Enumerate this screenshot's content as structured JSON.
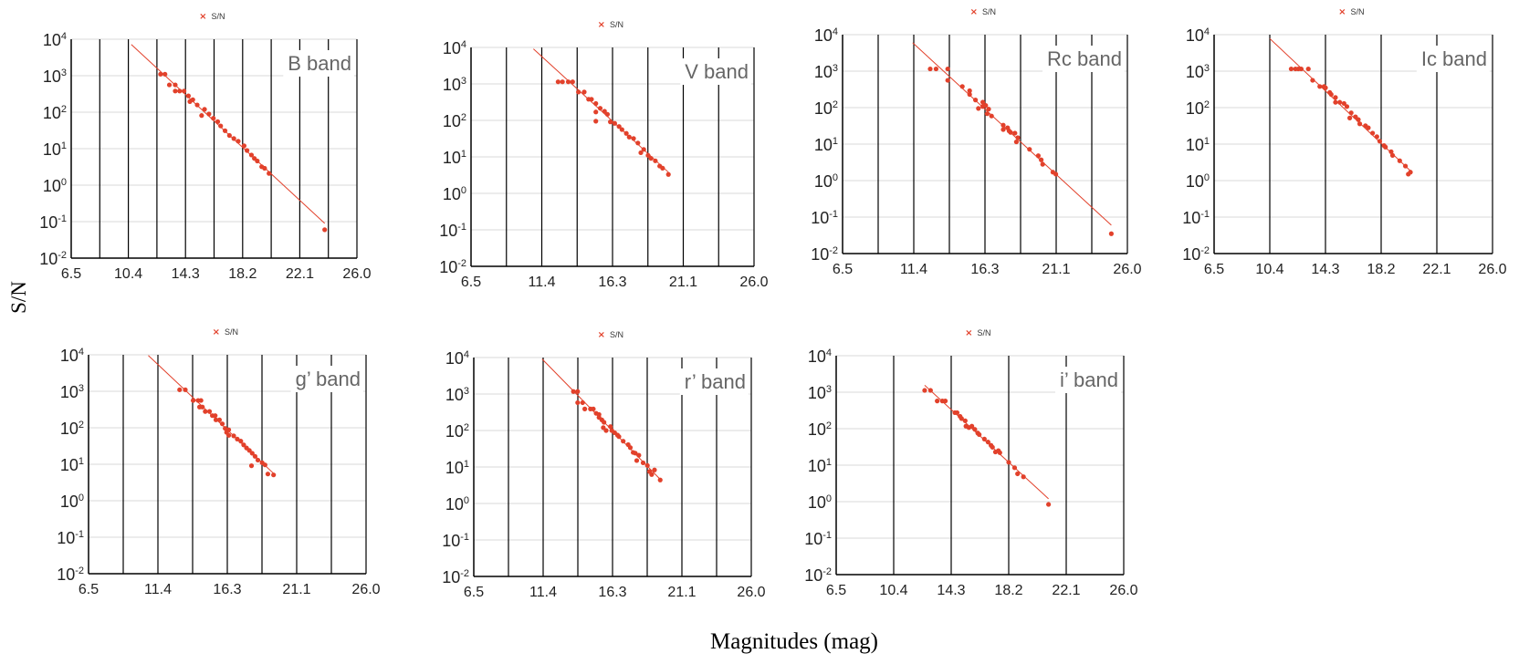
{
  "figure": {
    "ylabel": "S/N",
    "xlabel": "Magnitudes (mag)"
  },
  "colors": {
    "series": "#e2412b",
    "axis": "#000000",
    "grid": "#d9d9d9",
    "band_title": "#666666"
  },
  "chart_data": [
    {
      "type": "scatter",
      "title": "B band",
      "legend": "S/N",
      "legend_position": "top-center",
      "xlabel": "Magnitudes (mag)",
      "ylabel": "S/N",
      "xlim": [
        6.5,
        26.0
      ],
      "ylim": [
        0.01,
        10000
      ],
      "yscale": "log",
      "x_ticks": [
        "6.5",
        "10.4",
        "14.3",
        "18.2",
        "22.1",
        "26.0"
      ],
      "x_grid_step": 1.95,
      "y_tick_base": "10",
      "y_tick_exponents": [
        "4",
        "3",
        "2",
        "1",
        "0",
        "-1",
        "-2"
      ],
      "fit_line": [
        [
          10.6,
          7200
        ],
        [
          23.8,
          0.09
        ]
      ],
      "points": [
        [
          12.6,
          1100
        ],
        [
          12.9,
          1100
        ],
        [
          13.2,
          560
        ],
        [
          13.6,
          560
        ],
        [
          13.6,
          380
        ],
        [
          13.9,
          380
        ],
        [
          14.2,
          380
        ],
        [
          14.5,
          280
        ],
        [
          14.6,
          195
        ],
        [
          14.8,
          220
        ],
        [
          15.1,
          158
        ],
        [
          15.4,
          81
        ],
        [
          15.6,
          120
        ],
        [
          15.9,
          89
        ],
        [
          16.2,
          68
        ],
        [
          16.5,
          55
        ],
        [
          16.7,
          42
        ],
        [
          17.0,
          31
        ],
        [
          17.3,
          23
        ],
        [
          17.6,
          19
        ],
        [
          17.9,
          16
        ],
        [
          18.3,
          12
        ],
        [
          18.5,
          8.9
        ],
        [
          18.8,
          6.7
        ],
        [
          19.0,
          5.4
        ],
        [
          19.2,
          4.6
        ],
        [
          19.5,
          3.2
        ],
        [
          19.7,
          2.9
        ],
        [
          20.0,
          2.1
        ],
        [
          23.8,
          0.06
        ]
      ]
    },
    {
      "type": "scatter",
      "title": "V band",
      "legend": "S/N",
      "legend_position": "top-center",
      "xlabel": "Magnitudes (mag)",
      "ylabel": "S/N",
      "xlim": [
        6.5,
        26.0
      ],
      "ylim": [
        0.01,
        10000
      ],
      "yscale": "log",
      "x_ticks": [
        "6.5",
        "11.4",
        "16.3",
        "21.1",
        "26.0"
      ],
      "x_grid_step": 2.4375,
      "y_tick_base": "10",
      "y_tick_exponents": [
        "4",
        "3",
        "2",
        "1",
        "0",
        "-1",
        "-2"
      ],
      "fit_line": [
        [
          10.8,
          9100
        ],
        [
          20.1,
          3.8
        ]
      ],
      "points": [
        [
          12.5,
          1140
        ],
        [
          12.8,
          1140
        ],
        [
          13.2,
          1140
        ],
        [
          13.5,
          1140
        ],
        [
          13.9,
          600
        ],
        [
          14.3,
          600
        ],
        [
          14.6,
          380
        ],
        [
          14.8,
          380
        ],
        [
          15.1,
          290
        ],
        [
          15.1,
          170
        ],
        [
          15.1,
          95
        ],
        [
          15.4,
          215
        ],
        [
          15.7,
          178
        ],
        [
          15.9,
          147
        ],
        [
          16.1,
          91
        ],
        [
          16.4,
          83
        ],
        [
          16.7,
          68
        ],
        [
          16.9,
          56
        ],
        [
          17.2,
          44
        ],
        [
          17.4,
          35
        ],
        [
          17.7,
          32
        ],
        [
          18.0,
          24
        ],
        [
          18.2,
          13
        ],
        [
          18.4,
          16
        ],
        [
          18.7,
          11
        ],
        [
          18.9,
          9.1
        ],
        [
          19.2,
          7.8
        ],
        [
          19.5,
          5.6
        ],
        [
          19.7,
          4.9
        ],
        [
          20.1,
          3.3
        ]
      ]
    },
    {
      "type": "scatter",
      "title": "Rc band",
      "legend": "S/N",
      "legend_position": "top-center",
      "xlabel": "Magnitudes (mag)",
      "ylabel": "S/N",
      "xlim": [
        6.5,
        26.0
      ],
      "ylim": [
        0.01,
        10000
      ],
      "yscale": "log",
      "x_ticks": [
        "6.5",
        "11.4",
        "16.3",
        "21.1",
        "26.0"
      ],
      "x_grid_step": 2.4375,
      "y_tick_base": "10",
      "y_tick_exponents": [
        "4",
        "3",
        "2",
        "1",
        "0",
        "-1",
        "-2"
      ],
      "fit_line": [
        [
          11.3,
          6000
        ],
        [
          24.9,
          0.06
        ]
      ],
      "points": [
        [
          12.5,
          1150
        ],
        [
          12.9,
          1150
        ],
        [
          13.7,
          1150
        ],
        [
          13.7,
          560
        ],
        [
          14.7,
          380
        ],
        [
          15.2,
          290
        ],
        [
          15.2,
          230
        ],
        [
          15.6,
          162
        ],
        [
          15.8,
          95
        ],
        [
          16.1,
          141
        ],
        [
          16.1,
          107
        ],
        [
          16.3,
          115
        ],
        [
          16.4,
          68
        ],
        [
          16.5,
          91
        ],
        [
          16.7,
          59
        ],
        [
          17.5,
          33
        ],
        [
          17.5,
          25
        ],
        [
          17.8,
          28
        ],
        [
          17.9,
          23
        ],
        [
          18.0,
          21
        ],
        [
          18.3,
          20
        ],
        [
          18.4,
          11.5
        ],
        [
          18.5,
          15
        ],
        [
          19.3,
          7.2
        ],
        [
          19.9,
          4.8
        ],
        [
          20.1,
          3.7
        ],
        [
          20.2,
          2.8
        ],
        [
          20.9,
          1.7
        ],
        [
          21.1,
          1.5
        ],
        [
          24.9,
          0.035
        ]
      ]
    },
    {
      "type": "scatter",
      "title": "Ic band",
      "legend": "S/N",
      "legend_position": "top-center",
      "xlabel": "Magnitudes (mag)",
      "ylabel": "S/N",
      "xlim": [
        6.5,
        26.0
      ],
      "ylim": [
        0.01,
        10000
      ],
      "yscale": "log",
      "x_ticks": [
        "6.5",
        "10.4",
        "14.3",
        "18.2",
        "22.1",
        "26.0"
      ],
      "x_grid_step": 3.9,
      "y_tick_base": "10",
      "y_tick_exponents": [
        "4",
        "3",
        "2",
        "1",
        "0",
        "-1",
        "-2"
      ],
      "fit_line": [
        [
          10.4,
          7800
        ],
        [
          20.35,
          1.7
        ]
      ],
      "points": [
        [
          11.9,
          1150
        ],
        [
          12.2,
          1150
        ],
        [
          12.4,
          1150
        ],
        [
          12.6,
          1150
        ],
        [
          13.1,
          1150
        ],
        [
          13.4,
          560
        ],
        [
          13.9,
          380
        ],
        [
          14.2,
          380
        ],
        [
          14.3,
          350
        ],
        [
          14.6,
          260
        ],
        [
          14.7,
          230
        ],
        [
          15.0,
          190
        ],
        [
          15.0,
          140
        ],
        [
          15.3,
          140
        ],
        [
          15.6,
          130
        ],
        [
          15.8,
          107
        ],
        [
          16.0,
          52
        ],
        [
          16.1,
          72
        ],
        [
          16.4,
          56
        ],
        [
          16.6,
          47
        ],
        [
          16.7,
          36
        ],
        [
          17.1,
          32
        ],
        [
          17.3,
          28
        ],
        [
          17.6,
          20
        ],
        [
          17.9,
          16
        ],
        [
          18.1,
          12
        ],
        [
          18.4,
          9.1
        ],
        [
          18.5,
          8.3
        ],
        [
          18.9,
          6.2
        ],
        [
          19.0,
          4.9
        ],
        [
          19.5,
          3.5
        ],
        [
          19.9,
          2.5
        ],
        [
          20.1,
          1.5
        ],
        [
          20.25,
          1.7
        ]
      ]
    },
    {
      "type": "scatter",
      "title": "g’ band",
      "legend": "S/N",
      "legend_position": "top-center",
      "xlabel": "Magnitudes (mag)",
      "ylabel": "S/N",
      "xlim": [
        6.5,
        26.0
      ],
      "ylim": [
        0.01,
        10000
      ],
      "yscale": "log",
      "x_ticks": [
        "6.5",
        "11.4",
        "16.3",
        "21.1",
        "26.0"
      ],
      "x_grid_step": 2.4375,
      "y_tick_base": "10",
      "y_tick_exponents": [
        "4",
        "3",
        "2",
        "1",
        "0",
        "-1",
        "-2"
      ],
      "fit_line": [
        [
          10.7,
          9600
        ],
        [
          19.5,
          5.6
        ]
      ],
      "points": [
        [
          12.9,
          1100
        ],
        [
          13.3,
          1100
        ],
        [
          13.85,
          560
        ],
        [
          14.2,
          560
        ],
        [
          14.4,
          560
        ],
        [
          14.3,
          370
        ],
        [
          14.5,
          370
        ],
        [
          14.7,
          280
        ],
        [
          15.0,
          280
        ],
        [
          15.2,
          215
        ],
        [
          15.4,
          215
        ],
        [
          15.45,
          165
        ],
        [
          15.7,
          165
        ],
        [
          15.9,
          128
        ],
        [
          16.1,
          96
        ],
        [
          16.2,
          75
        ],
        [
          16.35,
          88
        ],
        [
          16.35,
          62
        ],
        [
          16.7,
          60
        ],
        [
          16.95,
          49
        ],
        [
          17.2,
          43
        ],
        [
          17.4,
          34
        ],
        [
          17.6,
          28
        ],
        [
          17.8,
          24
        ],
        [
          18.0,
          20
        ],
        [
          18.2,
          16.5
        ],
        [
          17.95,
          9.1
        ],
        [
          18.4,
          13
        ],
        [
          18.7,
          11
        ],
        [
          18.9,
          9.6
        ],
        [
          19.1,
          5.4
        ],
        [
          19.5,
          5.1
        ]
      ]
    },
    {
      "type": "scatter",
      "title": "r’ band",
      "legend": "S/N",
      "legend_position": "top-center",
      "xlabel": "Magnitudes (mag)",
      "ylabel": "S/N",
      "xlim": [
        6.5,
        26.0
      ],
      "ylim": [
        0.01,
        10000
      ],
      "yscale": "log",
      "x_ticks": [
        "6.5",
        "11.4",
        "16.3",
        "21.1",
        "26.0"
      ],
      "x_grid_step": 2.4375,
      "y_tick_base": "10",
      "y_tick_exponents": [
        "4",
        "3",
        "2",
        "1",
        "0",
        "-1",
        "-2"
      ],
      "fit_line": [
        [
          11.3,
          9100
        ],
        [
          19.6,
          4.6
        ]
      ],
      "points": [
        [
          13.5,
          1170
        ],
        [
          13.8,
          1170
        ],
        [
          13.8,
          580
        ],
        [
          14.15,
          580
        ],
        [
          14.3,
          390
        ],
        [
          14.7,
          390
        ],
        [
          14.9,
          390
        ],
        [
          15.1,
          295
        ],
        [
          15.3,
          275
        ],
        [
          15.3,
          228
        ],
        [
          15.5,
          195
        ],
        [
          15.6,
          120
        ],
        [
          15.65,
          168
        ],
        [
          15.8,
          100
        ],
        [
          16.1,
          128
        ],
        [
          16.2,
          100
        ],
        [
          16.4,
          87
        ],
        [
          16.6,
          75
        ],
        [
          16.7,
          68
        ],
        [
          17.0,
          51
        ],
        [
          17.35,
          41
        ],
        [
          17.5,
          34
        ],
        [
          17.7,
          25
        ],
        [
          17.85,
          24
        ],
        [
          17.95,
          15
        ],
        [
          18.1,
          21
        ],
        [
          18.4,
          13
        ],
        [
          18.7,
          11
        ],
        [
          18.85,
          7.5
        ],
        [
          19.0,
          6.2
        ],
        [
          19.2,
          8.3
        ],
        [
          19.6,
          4.4
        ]
      ]
    },
    {
      "type": "scatter",
      "title": "i’ band",
      "legend": "S/N",
      "legend_position": "top-center",
      "xlabel": "Magnitudes (mag)",
      "ylabel": "S/N",
      "xlim": [
        6.5,
        26.0
      ],
      "ylim": [
        0.01,
        10000
      ],
      "yscale": "log",
      "x_ticks": [
        "6.5",
        "10.4",
        "14.3",
        "18.2",
        "22.1",
        "26.0"
      ],
      "x_grid_step": 3.9,
      "y_tick_base": "10",
      "y_tick_exponents": [
        "4",
        "3",
        "2",
        "1",
        "0",
        "-1",
        "-2"
      ],
      "fit_line": [
        [
          12.5,
          1550
        ],
        [
          20.9,
          1.2
        ]
      ],
      "points": [
        [
          12.5,
          1120
        ],
        [
          12.9,
          1120
        ],
        [
          13.35,
          575
        ],
        [
          13.7,
          575
        ],
        [
          13.9,
          575
        ],
        [
          14.55,
          275
        ],
        [
          14.7,
          275
        ],
        [
          14.9,
          218
        ],
        [
          15.0,
          190
        ],
        [
          15.25,
          165
        ],
        [
          15.3,
          117
        ],
        [
          15.5,
          107
        ],
        [
          15.7,
          117
        ],
        [
          15.9,
          96
        ],
        [
          16.1,
          76
        ],
        [
          16.2,
          69
        ],
        [
          16.55,
          52
        ],
        [
          16.8,
          43
        ],
        [
          17.0,
          35
        ],
        [
          17.1,
          31
        ],
        [
          17.3,
          23
        ],
        [
          17.5,
          25
        ],
        [
          17.6,
          22
        ],
        [
          18.2,
          12
        ],
        [
          18.6,
          8.5
        ],
        [
          18.8,
          5.8
        ],
        [
          19.2,
          4.8
        ],
        [
          20.9,
          0.84
        ]
      ]
    }
  ]
}
